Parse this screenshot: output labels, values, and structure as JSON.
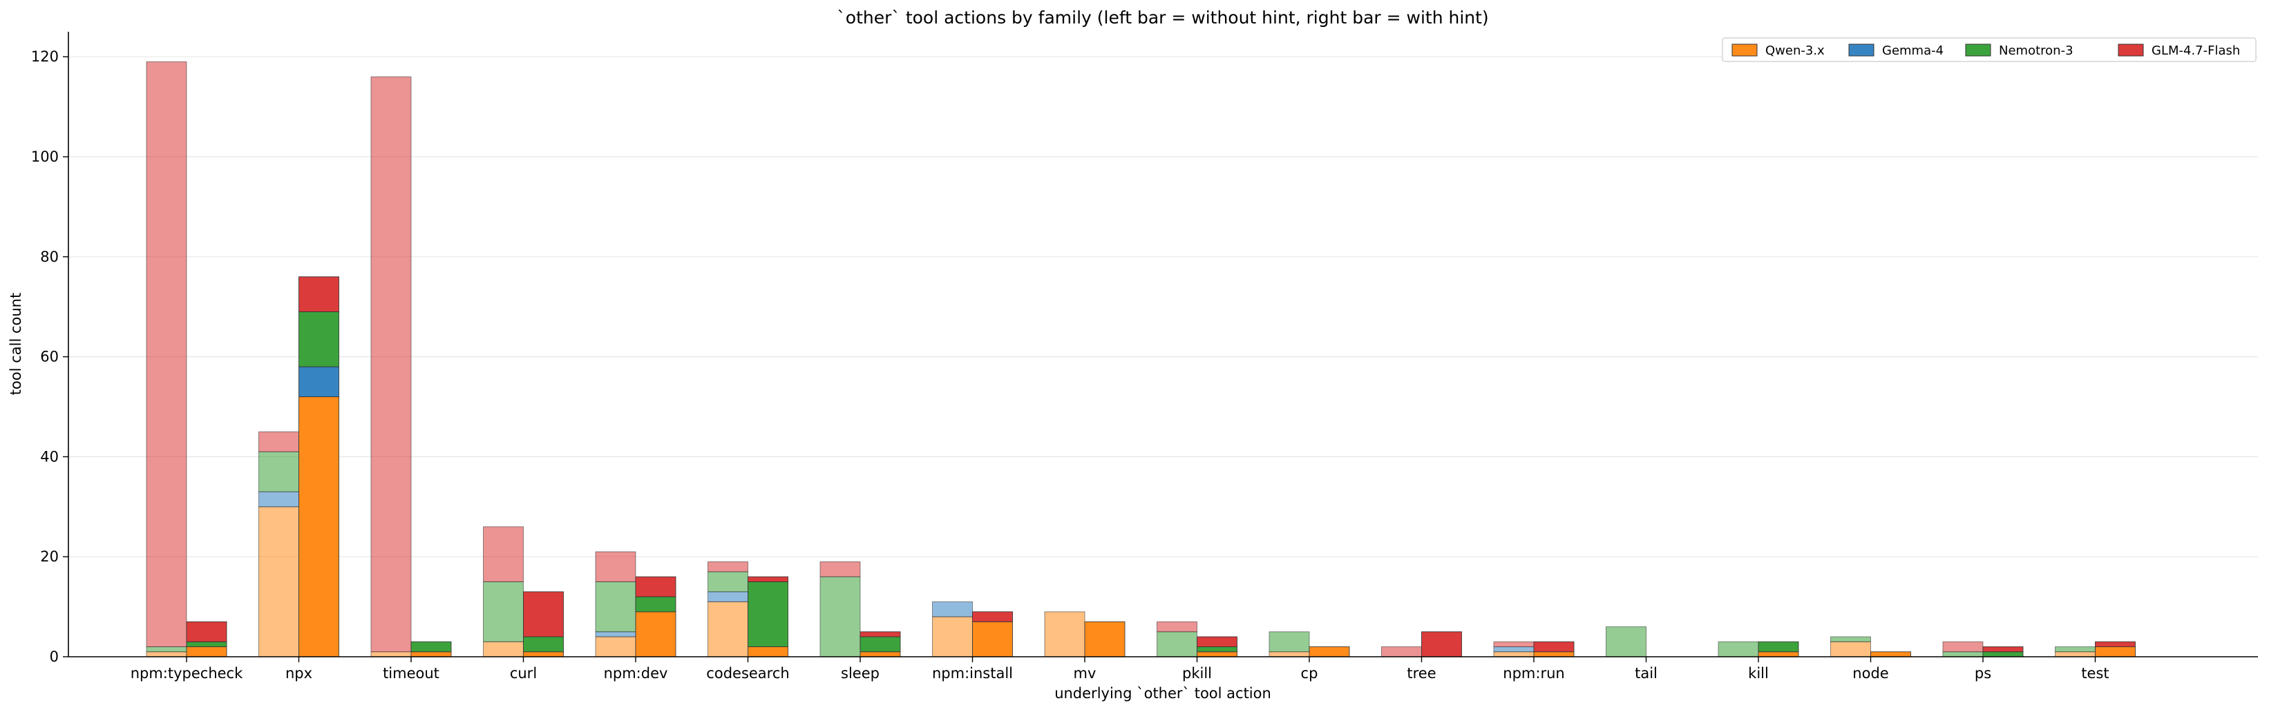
{
  "chart_data": {
    "type": "bar",
    "title": "`other` tool actions by family (left bar = without hint, right bar = with hint)",
    "xlabel": "underlying `other` tool action",
    "ylabel": "tool call count",
    "ylim": [
      0,
      125
    ],
    "yticks": [
      0,
      20,
      40,
      60,
      80,
      100,
      120
    ],
    "grid": "horizontal",
    "legend_position": "top-right",
    "stacked": true,
    "categories": [
      "npm:typecheck",
      "npx",
      "timeout",
      "curl",
      "npm:dev",
      "codesearch",
      "sleep",
      "npm:install",
      "mv",
      "pkill",
      "cp",
      "tree",
      "npm:run",
      "tail",
      "kill",
      "node",
      "ps",
      "test"
    ],
    "bar_groups": [
      "without hint",
      "with hint"
    ],
    "series": [
      {
        "name": "Qwen-3.x",
        "color": "#ff8c1a",
        "without_hint": [
          1,
          30,
          1,
          3,
          4,
          11,
          0,
          8,
          9,
          0,
          1,
          0,
          1,
          0,
          0,
          3,
          0,
          1
        ],
        "with_hint": [
          2,
          52,
          1,
          1,
          9,
          2,
          1,
          7,
          7,
          1,
          2,
          0,
          1,
          0,
          1,
          1,
          0,
          2
        ]
      },
      {
        "name": "Gemma-4",
        "color": "#3784c2",
        "without_hint": [
          0,
          3,
          0,
          0,
          1,
          2,
          0,
          3,
          0,
          0,
          0,
          0,
          1,
          0,
          0,
          0,
          0,
          0
        ],
        "with_hint": [
          0,
          6,
          0,
          0,
          0,
          0,
          0,
          0,
          0,
          0,
          0,
          0,
          0,
          0,
          0,
          0,
          0,
          0
        ]
      },
      {
        "name": "Nemotron-3",
        "color": "#3ca33c",
        "without_hint": [
          1,
          8,
          0,
          12,
          10,
          4,
          16,
          0,
          0,
          5,
          4,
          0,
          0,
          6,
          3,
          1,
          1,
          1
        ],
        "with_hint": [
          1,
          11,
          2,
          3,
          3,
          13,
          3,
          0,
          0,
          1,
          0,
          0,
          0,
          0,
          2,
          0,
          1,
          0
        ]
      },
      {
        "name": "GLM-4.7-Flash",
        "color": "#dc3b3b",
        "without_hint": [
          117,
          4,
          115,
          11,
          6,
          2,
          3,
          0,
          0,
          2,
          0,
          2,
          1,
          0,
          0,
          0,
          2,
          0
        ],
        "with_hint": [
          4,
          7,
          0,
          9,
          4,
          1,
          1,
          2,
          0,
          2,
          0,
          5,
          2,
          0,
          0,
          0,
          1,
          1
        ]
      }
    ]
  }
}
